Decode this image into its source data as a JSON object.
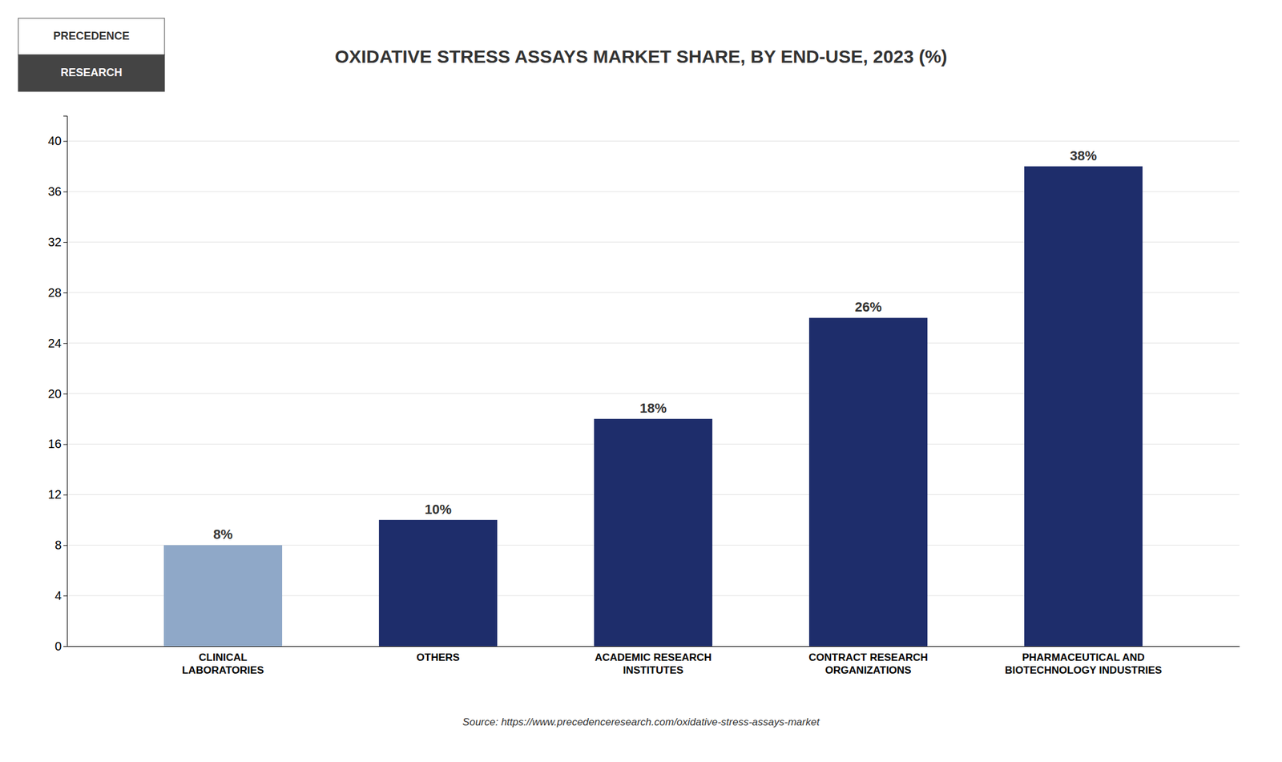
{
  "chart_data": {
    "type": "bar",
    "title": "OXIDATIVE STRESS ASSAYS MARKET SHARE, BY END-USE, 2023 (%)",
    "categories": [
      "CLINICAL\nLABORATORIES",
      "OTHERS",
      "ACADEMIC RESEARCH\nINSTITUTES",
      "CONTRACT RESEARCH\nORGANIZATIONS",
      "PHARMACEUTICAL AND\nBIOTECHNOLOGY INDUSTRIES"
    ],
    "values": [
      8,
      10,
      18,
      26,
      38
    ],
    "value_labels": [
      "8%",
      "10%",
      "18%",
      "26%",
      "38%"
    ],
    "data_labels": true,
    "colors": [
      "#8fa8c8",
      "#1e2d6b",
      "#1e2d6b",
      "#1e2d6b",
      "#1e2d6b"
    ],
    "ylim": [
      0,
      42
    ],
    "yticks": [
      0,
      4,
      8,
      12,
      16,
      20,
      24,
      28,
      32,
      36,
      40
    ],
    "grid": true,
    "annotations": [
      "PRECEDENCE",
      "RESEARCH",
      "Source: https://www.precedenceresearch.com/oxidative-stress-assays-market"
    ]
  }
}
